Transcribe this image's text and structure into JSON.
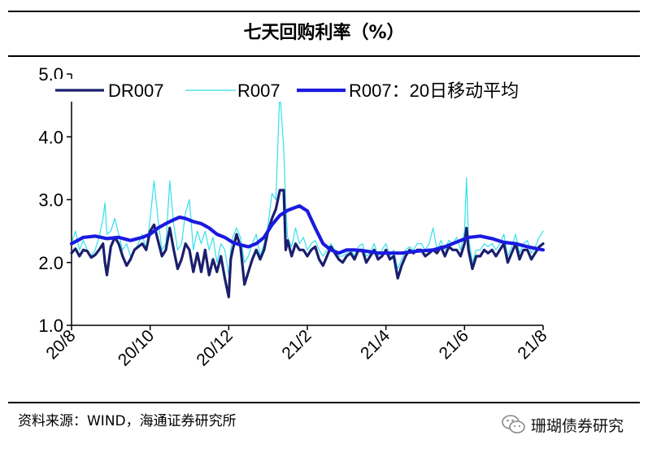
{
  "title": "七天回购利率（%）",
  "source": "资料来源：WIND，海通证券研究所",
  "watermark": {
    "icon": "wechat-icon",
    "text": "珊瑚债券研究"
  },
  "colors": {
    "DR007": "#1b1f6e",
    "R007": "#33e0ec",
    "R007_ma20": "#1a1adf"
  },
  "chart_data": {
    "type": "line",
    "title": "七天回购利率（%）",
    "xlabel": "",
    "ylabel": "",
    "ylim": [
      1.0,
      5.0
    ],
    "yticks": [
      "1.0",
      "2.0",
      "3.0",
      "4.0",
      "5.0"
    ],
    "xlim": [
      0,
      12.0
    ],
    "x_ticks": [
      {
        "label": "20/8",
        "x": 0
      },
      {
        "label": "20/10",
        "x": 2
      },
      {
        "label": "20/12",
        "x": 4
      },
      {
        "label": "21/2",
        "x": 6
      },
      {
        "label": "21/4",
        "x": 8
      },
      {
        "label": "21/6",
        "x": 10
      },
      {
        "label": "21/8",
        "x": 12
      }
    ],
    "legend_position": "top",
    "series": [
      {
        "name": "DR007",
        "points": [
          [
            0.0,
            2.15
          ],
          [
            0.1,
            2.22
          ],
          [
            0.2,
            2.1
          ],
          [
            0.3,
            2.2
          ],
          [
            0.4,
            2.18
          ],
          [
            0.5,
            2.08
          ],
          [
            0.6,
            2.12
          ],
          [
            0.7,
            2.2
          ],
          [
            0.8,
            2.3
          ],
          [
            0.85,
            2.0
          ],
          [
            0.9,
            1.8
          ],
          [
            1.0,
            2.25
          ],
          [
            1.1,
            2.4
          ],
          [
            1.2,
            2.3
          ],
          [
            1.3,
            2.1
          ],
          [
            1.4,
            1.95
          ],
          [
            1.5,
            2.05
          ],
          [
            1.6,
            2.2
          ],
          [
            1.7,
            2.25
          ],
          [
            1.8,
            2.3
          ],
          [
            1.9,
            2.2
          ],
          [
            2.0,
            2.5
          ],
          [
            2.1,
            2.6
          ],
          [
            2.2,
            2.35
          ],
          [
            2.3,
            2.1
          ],
          [
            2.4,
            2.2
          ],
          [
            2.5,
            2.55
          ],
          [
            2.6,
            2.2
          ],
          [
            2.7,
            1.9
          ],
          [
            2.8,
            2.05
          ],
          [
            2.9,
            2.3
          ],
          [
            3.0,
            2.2
          ],
          [
            3.1,
            1.85
          ],
          [
            3.2,
            2.15
          ],
          [
            3.3,
            1.85
          ],
          [
            3.4,
            2.2
          ],
          [
            3.5,
            1.8
          ],
          [
            3.6,
            2.05
          ],
          [
            3.7,
            1.85
          ],
          [
            3.8,
            2.1
          ],
          [
            3.9,
            1.75
          ],
          [
            4.0,
            1.45
          ],
          [
            4.05,
            2.05
          ],
          [
            4.1,
            2.2
          ],
          [
            4.2,
            2.45
          ],
          [
            4.3,
            2.25
          ],
          [
            4.4,
            1.65
          ],
          [
            4.5,
            1.85
          ],
          [
            4.6,
            2.05
          ],
          [
            4.7,
            2.2
          ],
          [
            4.8,
            2.05
          ],
          [
            4.9,
            2.2
          ],
          [
            5.0,
            2.5
          ],
          [
            5.1,
            2.7
          ],
          [
            5.2,
            2.85
          ],
          [
            5.3,
            3.15
          ],
          [
            5.4,
            3.15
          ],
          [
            5.45,
            2.2
          ],
          [
            5.5,
            2.35
          ],
          [
            5.6,
            2.1
          ],
          [
            5.7,
            2.3
          ],
          [
            5.8,
            2.2
          ],
          [
            5.9,
            2.2
          ],
          [
            6.0,
            2.1
          ],
          [
            6.1,
            2.2
          ],
          [
            6.2,
            2.25
          ],
          [
            6.3,
            2.05
          ],
          [
            6.4,
            1.95
          ],
          [
            6.5,
            2.1
          ],
          [
            6.6,
            2.25
          ],
          [
            6.7,
            2.15
          ],
          [
            6.8,
            2.05
          ],
          [
            6.9,
            2.0
          ],
          [
            7.0,
            2.1
          ],
          [
            7.1,
            2.15
          ],
          [
            7.2,
            2.05
          ],
          [
            7.3,
            2.2
          ],
          [
            7.4,
            2.2
          ],
          [
            7.5,
            2.0
          ],
          [
            7.6,
            2.1
          ],
          [
            7.7,
            2.2
          ],
          [
            7.8,
            2.05
          ],
          [
            7.9,
            2.1
          ],
          [
            8.0,
            2.2
          ],
          [
            8.1,
            2.05
          ],
          [
            8.2,
            2.1
          ],
          [
            8.3,
            1.75
          ],
          [
            8.4,
            1.95
          ],
          [
            8.5,
            2.1
          ],
          [
            8.6,
            2.2
          ],
          [
            8.7,
            2.15
          ],
          [
            8.8,
            2.2
          ],
          [
            8.9,
            2.2
          ],
          [
            9.0,
            2.1
          ],
          [
            9.1,
            2.15
          ],
          [
            9.2,
            2.2
          ],
          [
            9.3,
            2.15
          ],
          [
            9.4,
            2.25
          ],
          [
            9.5,
            2.1
          ],
          [
            9.6,
            2.25
          ],
          [
            9.7,
            2.2
          ],
          [
            9.8,
            2.2
          ],
          [
            9.9,
            2.1
          ],
          [
            10.0,
            2.3
          ],
          [
            10.05,
            2.55
          ],
          [
            10.1,
            2.2
          ],
          [
            10.2,
            1.9
          ],
          [
            10.3,
            2.1
          ],
          [
            10.4,
            2.1
          ],
          [
            10.5,
            2.2
          ],
          [
            10.6,
            2.15
          ],
          [
            10.7,
            2.2
          ],
          [
            10.8,
            2.1
          ],
          [
            10.9,
            2.2
          ],
          [
            11.0,
            2.3
          ],
          [
            11.1,
            2.0
          ],
          [
            11.2,
            2.15
          ],
          [
            11.3,
            2.3
          ],
          [
            11.4,
            2.05
          ],
          [
            11.5,
            2.2
          ],
          [
            11.6,
            2.2
          ],
          [
            11.7,
            2.05
          ],
          [
            11.8,
            2.15
          ],
          [
            11.9,
            2.25
          ],
          [
            12.0,
            2.3
          ]
        ]
      },
      {
        "name": "R007",
        "points": [
          [
            0.0,
            2.3
          ],
          [
            0.1,
            2.5
          ],
          [
            0.2,
            2.2
          ],
          [
            0.3,
            2.35
          ],
          [
            0.4,
            2.2
          ],
          [
            0.5,
            2.1
          ],
          [
            0.6,
            2.2
          ],
          [
            0.7,
            2.4
          ],
          [
            0.8,
            2.7
          ],
          [
            0.85,
            2.95
          ],
          [
            0.9,
            2.45
          ],
          [
            1.0,
            2.5
          ],
          [
            1.1,
            2.7
          ],
          [
            1.2,
            2.45
          ],
          [
            1.3,
            2.2
          ],
          [
            1.4,
            2.3
          ],
          [
            1.5,
            2.1
          ],
          [
            1.6,
            2.2
          ],
          [
            1.7,
            2.3
          ],
          [
            1.8,
            2.45
          ],
          [
            1.9,
            2.2
          ],
          [
            2.0,
            2.7
          ],
          [
            2.1,
            3.3
          ],
          [
            2.2,
            2.7
          ],
          [
            2.3,
            2.2
          ],
          [
            2.4,
            2.3
          ],
          [
            2.5,
            3.3
          ],
          [
            2.6,
            2.6
          ],
          [
            2.7,
            2.2
          ],
          [
            2.8,
            2.3
          ],
          [
            2.9,
            2.8
          ],
          [
            3.0,
            3.0
          ],
          [
            3.1,
            2.2
          ],
          [
            3.2,
            2.5
          ],
          [
            3.3,
            2.3
          ],
          [
            3.4,
            2.5
          ],
          [
            3.5,
            2.2
          ],
          [
            3.6,
            2.4
          ],
          [
            3.7,
            2.0
          ],
          [
            3.8,
            2.3
          ],
          [
            3.9,
            2.2
          ],
          [
            4.0,
            1.8
          ],
          [
            4.05,
            2.2
          ],
          [
            4.1,
            2.4
          ],
          [
            4.2,
            2.55
          ],
          [
            4.3,
            2.4
          ],
          [
            4.4,
            2.0
          ],
          [
            4.5,
            2.1
          ],
          [
            4.6,
            2.3
          ],
          [
            4.7,
            2.45
          ],
          [
            4.8,
            2.1
          ],
          [
            4.9,
            2.3
          ],
          [
            5.0,
            2.6
          ],
          [
            5.1,
            3.1
          ],
          [
            5.2,
            3.0
          ],
          [
            5.3,
            4.75
          ],
          [
            5.4,
            3.8
          ],
          [
            5.45,
            2.9
          ],
          [
            5.5,
            2.4
          ],
          [
            5.6,
            2.25
          ],
          [
            5.7,
            2.55
          ],
          [
            5.8,
            2.3
          ],
          [
            5.9,
            2.4
          ],
          [
            6.0,
            2.2
          ],
          [
            6.1,
            2.3
          ],
          [
            6.2,
            2.35
          ],
          [
            6.3,
            2.2
          ],
          [
            6.4,
            2.1
          ],
          [
            6.5,
            2.2
          ],
          [
            6.6,
            2.3
          ],
          [
            6.7,
            2.2
          ],
          [
            6.8,
            2.1
          ],
          [
            6.9,
            2.1
          ],
          [
            7.0,
            2.15
          ],
          [
            7.1,
            2.2
          ],
          [
            7.2,
            2.1
          ],
          [
            7.3,
            2.25
          ],
          [
            7.4,
            2.3
          ],
          [
            7.5,
            2.1
          ],
          [
            7.6,
            2.15
          ],
          [
            7.7,
            2.3
          ],
          [
            7.8,
            2.1
          ],
          [
            7.9,
            2.2
          ],
          [
            8.0,
            2.3
          ],
          [
            8.1,
            2.1
          ],
          [
            8.2,
            2.2
          ],
          [
            8.3,
            1.9
          ],
          [
            8.4,
            2.05
          ],
          [
            8.5,
            2.2
          ],
          [
            8.6,
            2.25
          ],
          [
            8.7,
            2.2
          ],
          [
            8.8,
            2.3
          ],
          [
            8.9,
            2.3
          ],
          [
            9.0,
            2.2
          ],
          [
            9.1,
            2.3
          ],
          [
            9.2,
            2.55
          ],
          [
            9.3,
            2.2
          ],
          [
            9.4,
            2.35
          ],
          [
            9.5,
            2.2
          ],
          [
            9.6,
            2.35
          ],
          [
            9.7,
            2.3
          ],
          [
            9.8,
            2.4
          ],
          [
            9.9,
            2.2
          ],
          [
            10.0,
            2.5
          ],
          [
            10.05,
            3.35
          ],
          [
            10.1,
            2.4
          ],
          [
            10.2,
            2.0
          ],
          [
            10.3,
            2.2
          ],
          [
            10.4,
            2.2
          ],
          [
            10.5,
            2.3
          ],
          [
            10.6,
            2.25
          ],
          [
            10.7,
            2.3
          ],
          [
            10.8,
            2.2
          ],
          [
            10.9,
            2.3
          ],
          [
            11.0,
            2.45
          ],
          [
            11.1,
            2.1
          ],
          [
            11.2,
            2.25
          ],
          [
            11.3,
            2.45
          ],
          [
            11.4,
            2.15
          ],
          [
            11.5,
            2.3
          ],
          [
            11.6,
            2.35
          ],
          [
            11.7,
            2.15
          ],
          [
            11.8,
            2.25
          ],
          [
            11.9,
            2.4
          ],
          [
            12.0,
            2.5
          ]
        ]
      },
      {
        "name": "R007：20日移动平均",
        "points": [
          [
            0.0,
            2.3
          ],
          [
            0.3,
            2.4
          ],
          [
            0.6,
            2.42
          ],
          [
            0.9,
            2.38
          ],
          [
            1.2,
            2.4
          ],
          [
            1.5,
            2.35
          ],
          [
            1.8,
            2.4
          ],
          [
            2.0,
            2.45
          ],
          [
            2.2,
            2.55
          ],
          [
            2.4,
            2.62
          ],
          [
            2.6,
            2.68
          ],
          [
            2.75,
            2.72
          ],
          [
            2.9,
            2.7
          ],
          [
            3.1,
            2.65
          ],
          [
            3.3,
            2.62
          ],
          [
            3.5,
            2.55
          ],
          [
            3.7,
            2.45
          ],
          [
            3.9,
            2.4
          ],
          [
            4.1,
            2.32
          ],
          [
            4.3,
            2.28
          ],
          [
            4.5,
            2.25
          ],
          [
            4.7,
            2.3
          ],
          [
            4.9,
            2.4
          ],
          [
            5.1,
            2.6
          ],
          [
            5.3,
            2.75
          ],
          [
            5.5,
            2.83
          ],
          [
            5.8,
            2.9
          ],
          [
            6.0,
            2.82
          ],
          [
            6.2,
            2.55
          ],
          [
            6.4,
            2.3
          ],
          [
            6.6,
            2.2
          ],
          [
            6.8,
            2.15
          ],
          [
            7.0,
            2.2
          ],
          [
            7.2,
            2.2
          ],
          [
            7.5,
            2.18
          ],
          [
            7.8,
            2.15
          ],
          [
            8.0,
            2.15
          ],
          [
            8.4,
            2.15
          ],
          [
            8.8,
            2.18
          ],
          [
            9.2,
            2.2
          ],
          [
            9.5,
            2.25
          ],
          [
            9.7,
            2.3
          ],
          [
            9.9,
            2.35
          ],
          [
            10.1,
            2.4
          ],
          [
            10.4,
            2.42
          ],
          [
            10.7,
            2.38
          ],
          [
            11.0,
            2.32
          ],
          [
            11.3,
            2.3
          ],
          [
            11.6,
            2.25
          ],
          [
            12.0,
            2.2
          ]
        ]
      }
    ]
  }
}
